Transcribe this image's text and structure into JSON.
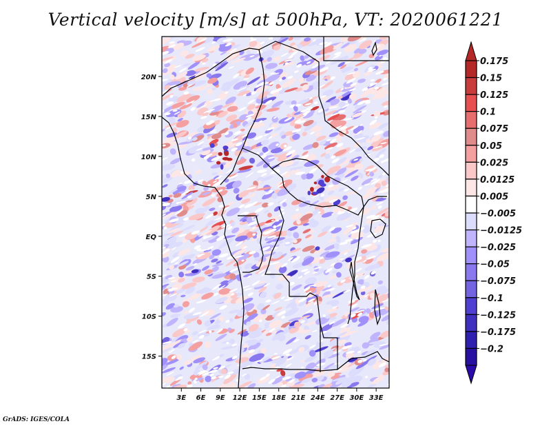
{
  "title": "Vertical velocity [m/s] at 500hPa, VT: 2020061221",
  "credit": "GrADS: IGES/COLA",
  "chart_data": {
    "type": "heatmap",
    "title": "Vertical velocity [m/s] at 500hPa, VT: 2020061221",
    "variable": "Vertical velocity",
    "units": "m/s",
    "level": "500hPa",
    "valid_time": "2020061221",
    "xlabel": "",
    "ylabel": "",
    "x_range_deg": [
      0,
      35
    ],
    "y_range_deg": [
      -19,
      25
    ],
    "x_ticks": [
      {
        "value": 3,
        "label": "3E"
      },
      {
        "value": 6,
        "label": "6E"
      },
      {
        "value": 9,
        "label": "9E"
      },
      {
        "value": 12,
        "label": "12E"
      },
      {
        "value": 15,
        "label": "15E"
      },
      {
        "value": 18,
        "label": "18E"
      },
      {
        "value": 21,
        "label": "21E"
      },
      {
        "value": 24,
        "label": "24E"
      },
      {
        "value": 27,
        "label": "27E"
      },
      {
        "value": 30,
        "label": "30E"
      },
      {
        "value": 33,
        "label": "33E"
      }
    ],
    "y_ticks": [
      {
        "value": 20,
        "label": "20N"
      },
      {
        "value": 15,
        "label": "15N"
      },
      {
        "value": 10,
        "label": "10N"
      },
      {
        "value": 5,
        "label": "5N"
      },
      {
        "value": 0,
        "label": "EQ"
      },
      {
        "value": -5,
        "label": "5S"
      },
      {
        "value": -10,
        "label": "10S"
      },
      {
        "value": -15,
        "label": "15S"
      }
    ],
    "colorbar": {
      "placement": "right",
      "levels": [
        "0.175",
        "0.15",
        "0.125",
        "0.1",
        "0.075",
        "0.05",
        "0.025",
        "0.0125",
        "0.005",
        "-0.005",
        "-0.0125",
        "-0.025",
        "-0.05",
        "-0.075",
        "-0.1",
        "-0.125",
        "-0.175",
        "-0.2"
      ],
      "colors": [
        "#b42828",
        "#c83c3c",
        "#e65050",
        "#e66e6e",
        "#e08c8c",
        "#f5a0a0",
        "#fac8c8",
        "#fde6e6",
        "#ffffff",
        "#dcdcfc",
        "#c0b4fc",
        "#a090fa",
        "#8a78ee",
        "#7464e0",
        "#5040d2",
        "#4030c0",
        "#3020b0",
        "#2810a0"
      ],
      "over_color": "#b42828",
      "under_color": "#2a0aa8"
    },
    "notable_features": [
      {
        "description": "Strong upward motion cores (dark red) over central Nigeria",
        "approx_lon": 9,
        "approx_lat": 10
      },
      {
        "description": "Strong upward motion cores over Central African Republic / South Sudan border",
        "approx_lon": 24,
        "approx_lat": 6
      },
      {
        "description": "Banded alternating ascent/descent over Gulf of Guinea",
        "approx_lon": 5,
        "approx_lat": 3
      },
      {
        "description": "Predominantly weak subsidence (light blue) over South Atlantic",
        "approx_lon": 5,
        "approx_lat": -10
      }
    ]
  }
}
